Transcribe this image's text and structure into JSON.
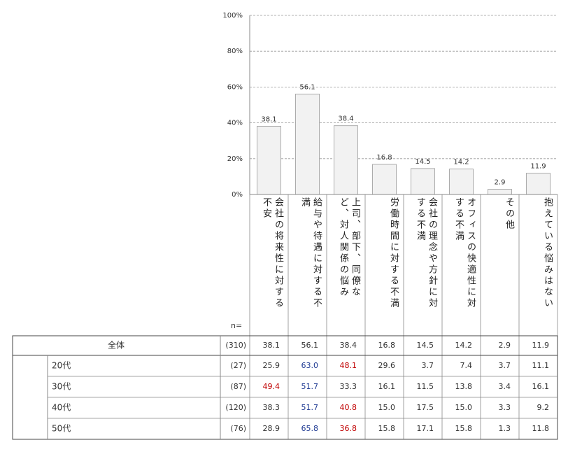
{
  "chart_data": {
    "type": "bar",
    "categories": [
      "会社の将来性に対する不安",
      "給与や待遇に対する不満",
      "上司、部下、同僚など、対人関係の悩み",
      "労働時間に対する不満",
      "会社の理念や方針に対する不満",
      "オフィスの快適性に対する不満",
      "その他",
      "抱えている悩みはない"
    ],
    "values": [
      38.1,
      56.1,
      38.4,
      16.8,
      14.5,
      14.2,
      2.9,
      11.9
    ],
    "color": "#f2f2f2",
    "ylim": [
      0,
      100
    ],
    "yticks": [
      {
        "value": 0,
        "label": "0%"
      },
      {
        "value": 20,
        "label": "20%"
      },
      {
        "value": 40,
        "label": "40%"
      },
      {
        "value": 60,
        "label": "60%"
      },
      {
        "value": 80,
        "label": "80%"
      },
      {
        "value": 100,
        "label": "100%"
      }
    ],
    "grid": true
  },
  "table": {
    "n_header": "n=",
    "total": {
      "label": "全体",
      "n": "(310)",
      "values": [
        "38.1",
        "56.1",
        "38.4",
        "16.8",
        "14.5",
        "14.2",
        "2.9",
        "11.9"
      ]
    },
    "rows": [
      {
        "label": "20代",
        "n": "(27)",
        "values": [
          "25.9",
          "63.0",
          "48.1",
          "29.6",
          "3.7",
          "7.4",
          "3.7",
          "11.1"
        ],
        "colors": [
          "#333333",
          "#1f3a93",
          "#c00000",
          "#333333",
          "#333333",
          "#333333",
          "#333333",
          "#333333"
        ]
      },
      {
        "label": "30代",
        "n": "(87)",
        "values": [
          "49.4",
          "51.7",
          "33.3",
          "16.1",
          "11.5",
          "13.8",
          "3.4",
          "16.1"
        ],
        "colors": [
          "#c00000",
          "#1f3a93",
          "#333333",
          "#333333",
          "#333333",
          "#333333",
          "#333333",
          "#333333"
        ]
      },
      {
        "label": "40代",
        "n": "(120)",
        "values": [
          "38.3",
          "51.7",
          "40.8",
          "15.0",
          "17.5",
          "15.0",
          "3.3",
          "9.2"
        ],
        "colors": [
          "#333333",
          "#1f3a93",
          "#c00000",
          "#333333",
          "#333333",
          "#333333",
          "#333333",
          "#333333"
        ]
      },
      {
        "label": "50代",
        "n": "(76)",
        "values": [
          "28.9",
          "65.8",
          "36.8",
          "15.8",
          "17.1",
          "15.8",
          "1.3",
          "11.8"
        ],
        "colors": [
          "#333333",
          "#1f3a93",
          "#c00000",
          "#333333",
          "#333333",
          "#333333",
          "#333333",
          "#333333"
        ]
      }
    ]
  }
}
